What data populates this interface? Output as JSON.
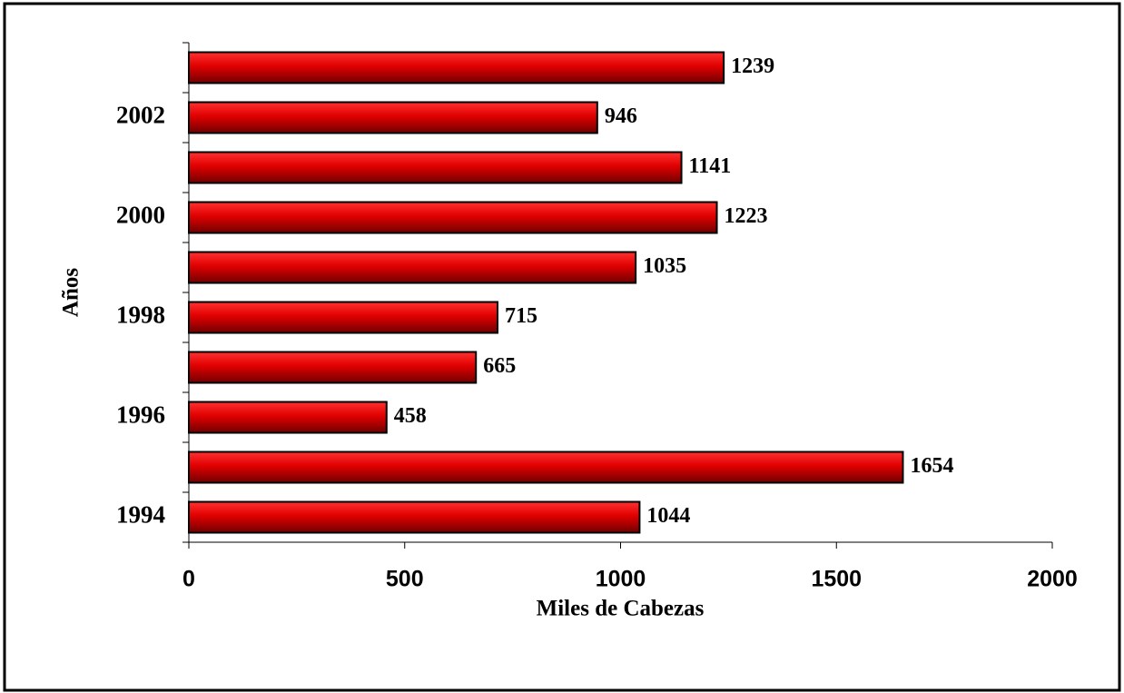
{
  "chart_data": {
    "type": "bar",
    "orientation": "horizontal",
    "categories": [
      "1994",
      null,
      "1996",
      null,
      "1998",
      null,
      "2000",
      null,
      "2002",
      null
    ],
    "values": [
      1044,
      1654,
      458,
      665,
      715,
      1035,
      1223,
      1141,
      946,
      1239
    ],
    "color": "#e00000",
    "xlim": [
      0,
      2000
    ],
    "xticks": [
      0,
      500,
      1000,
      1500,
      2000
    ],
    "xlabel": "Miles de Cabezas",
    "ylabel": "Años",
    "grid": false
  }
}
